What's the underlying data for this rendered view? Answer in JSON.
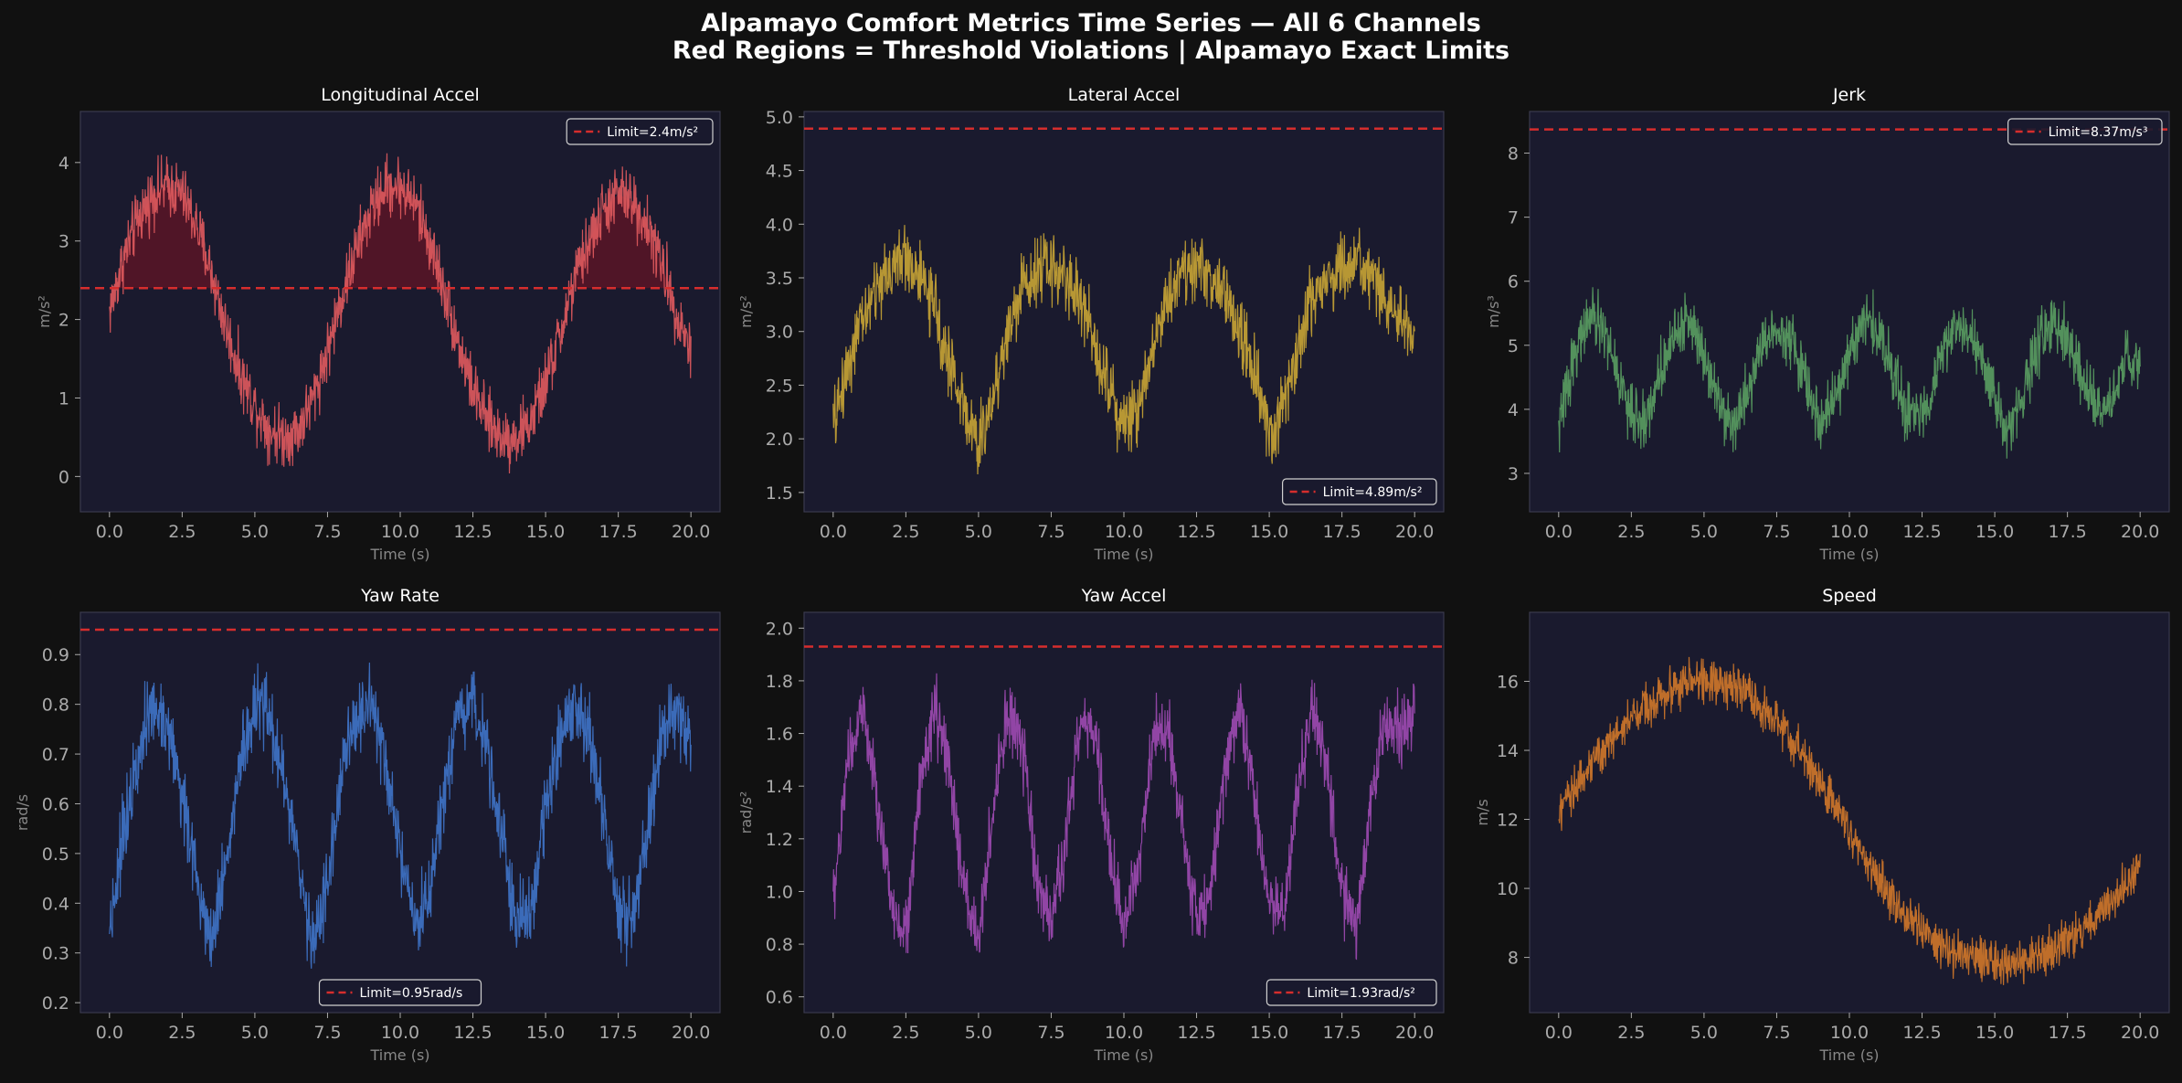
{
  "figure": {
    "title_line1": "Alpamayo Comfort Metrics Time Series — All 6 Channels",
    "title_line2": "Red Regions = Threshold Violations | Alpamayo Exact Limits"
  },
  "colors": {
    "figure_bg": "#111111",
    "axes_bg": "#1a1a2e",
    "limit_line": "#d62d2d",
    "violation_fill": "#5a1526"
  },
  "chart_data": [
    {
      "type": "line",
      "title": "Longitudinal Accel",
      "xlabel": "Time (s)",
      "ylabel": "m/s²",
      "color": "#e05a5e",
      "xlim": [
        -1.0,
        21.0
      ],
      "ylim": [
        -0.45,
        4.65
      ],
      "xticks": [
        0.0,
        2.5,
        5.0,
        7.5,
        10.0,
        12.5,
        15.0,
        17.5,
        20.0
      ],
      "xtick_labels": [
        "0.0",
        "2.5",
        "5.0",
        "7.5",
        "10.0",
        "12.5",
        "15.0",
        "17.5",
        "20.0"
      ],
      "yticks": [
        0,
        1,
        2,
        3,
        4
      ],
      "ytick_labels": [
        "0",
        "1",
        "2",
        "3",
        "4"
      ],
      "x": [
        0,
        0.5,
        1,
        1.5,
        2,
        2.5,
        3,
        3.5,
        4,
        4.5,
        5,
        5.5,
        6,
        6.5,
        7,
        7.5,
        8,
        8.5,
        9,
        9.5,
        10,
        10.5,
        11,
        11.5,
        12,
        12.5,
        13,
        13.5,
        14,
        14.5,
        15,
        15.5,
        16,
        16.5,
        17,
        17.5,
        18,
        18.5,
        19,
        19.5,
        20
      ],
      "y": [
        2.1,
        2.8,
        3.3,
        3.6,
        3.7,
        3.6,
        3.2,
        2.6,
        1.9,
        1.3,
        0.9,
        0.6,
        0.5,
        0.6,
        1.0,
        1.6,
        2.3,
        2.9,
        3.4,
        3.7,
        3.7,
        3.5,
        3.0,
        2.4,
        1.7,
        1.1,
        0.7,
        0.5,
        0.5,
        0.7,
        1.2,
        1.8,
        2.5,
        3.0,
        3.4,
        3.6,
        3.5,
        3.2,
        2.7,
        2.1,
        1.6
      ],
      "noise": 0.3,
      "limit": 2.4,
      "limit_label": "Limit=2.4m/s²",
      "legend": "top-right",
      "violation_fill": true
    },
    {
      "type": "line",
      "title": "Lateral Accel",
      "xlabel": "Time (s)",
      "ylabel": "m/s²",
      "color": "#c9a535",
      "xlim": [
        -1.0,
        21.0
      ],
      "ylim": [
        1.32,
        5.05
      ],
      "xticks": [
        0.0,
        2.5,
        5.0,
        7.5,
        10.0,
        12.5,
        15.0,
        17.5,
        20.0
      ],
      "xtick_labels": [
        "0.0",
        "2.5",
        "5.0",
        "7.5",
        "10.0",
        "12.5",
        "15.0",
        "17.5",
        "20.0"
      ],
      "yticks": [
        1.5,
        2.0,
        2.5,
        3.0,
        3.5,
        4.0,
        4.5,
        5.0
      ],
      "ytick_labels": [
        "1.5",
        "2.0",
        "2.5",
        "3.0",
        "3.5",
        "4.0",
        "4.5",
        "5.0"
      ],
      "x": [
        0,
        0.5,
        1,
        1.5,
        2,
        2.5,
        3,
        3.5,
        4,
        4.5,
        5,
        5.5,
        6,
        6.5,
        7,
        7.5,
        8,
        8.5,
        9,
        9.5,
        10,
        10.5,
        11,
        11.5,
        12,
        12.5,
        13,
        13.5,
        14,
        14.5,
        15,
        15.5,
        16,
        16.5,
        17,
        17.5,
        18,
        18.5,
        19,
        19.5,
        20
      ],
      "y": [
        2.1,
        2.7,
        3.1,
        3.4,
        3.6,
        3.7,
        3.5,
        3.2,
        2.7,
        2.3,
        1.9,
        2.4,
        3.0,
        3.4,
        3.6,
        3.6,
        3.5,
        3.3,
        2.9,
        2.5,
        2.1,
        2.3,
        2.9,
        3.3,
        3.6,
        3.6,
        3.5,
        3.3,
        3.0,
        2.6,
        2.0,
        2.3,
        2.9,
        3.3,
        3.5,
        3.6,
        3.6,
        3.5,
        3.3,
        3.1,
        2.9
      ],
      "noise": 0.25,
      "limit": 4.89,
      "limit_label": "Limit=4.89m/s²",
      "legend": "bottom-right",
      "violation_fill": false
    },
    {
      "type": "line",
      "title": "Jerk",
      "xlabel": "Time (s)",
      "ylabel": "m/s³",
      "color": "#5a9e62",
      "xlim": [
        -1.0,
        21.0
      ],
      "ylim": [
        2.4,
        8.65
      ],
      "xticks": [
        0.0,
        2.5,
        5.0,
        7.5,
        10.0,
        12.5,
        15.0,
        17.5,
        20.0
      ],
      "xtick_labels": [
        "0.0",
        "2.5",
        "5.0",
        "7.5",
        "10.0",
        "12.5",
        "15.0",
        "17.5",
        "20.0"
      ],
      "yticks": [
        3,
        4,
        5,
        6,
        7,
        8
      ],
      "ytick_labels": [
        "3",
        "4",
        "5",
        "6",
        "7",
        "8"
      ],
      "x": [
        0,
        0.5,
        1,
        1.5,
        2,
        2.5,
        3,
        3.5,
        4,
        4.5,
        5,
        5.5,
        6,
        6.5,
        7,
        7.5,
        8,
        8.5,
        9,
        9.5,
        10,
        10.5,
        11,
        11.5,
        12,
        12.5,
        13,
        13.5,
        14,
        14.5,
        15,
        15.5,
        16,
        16.5,
        17,
        17.5,
        18,
        18.5,
        19,
        19.5,
        20
      ],
      "y": [
        3.7,
        4.8,
        5.4,
        5.3,
        4.6,
        3.9,
        3.8,
        4.6,
        5.2,
        5.4,
        4.9,
        4.2,
        3.7,
        4.3,
        5.0,
        5.3,
        5.1,
        4.4,
        3.8,
        4.1,
        4.9,
        5.4,
        5.2,
        4.6,
        3.9,
        3.9,
        4.6,
        5.2,
        5.3,
        4.8,
        4.1,
        3.7,
        4.3,
        5.0,
        5.3,
        5.1,
        4.5,
        3.9,
        4.1,
        4.8,
        4.6
      ],
      "noise": 0.35,
      "limit": 8.37,
      "limit_label": "Limit=8.37m/s³",
      "legend": "top-right",
      "violation_fill": false
    },
    {
      "type": "line",
      "title": "Yaw Rate",
      "xlabel": "Time (s)",
      "ylabel": "rad/s",
      "color": "#3f74c9",
      "xlim": [
        -1.0,
        21.0
      ],
      "ylim": [
        0.18,
        0.985
      ],
      "xticks": [
        0.0,
        2.5,
        5.0,
        7.5,
        10.0,
        12.5,
        15.0,
        17.5,
        20.0
      ],
      "xtick_labels": [
        "0.0",
        "2.5",
        "5.0",
        "7.5",
        "10.0",
        "12.5",
        "15.0",
        "17.5",
        "20.0"
      ],
      "yticks": [
        0.2,
        0.3,
        0.4,
        0.5,
        0.6,
        0.7,
        0.8,
        0.9
      ],
      "ytick_labels": [
        "0.2",
        "0.3",
        "0.4",
        "0.5",
        "0.6",
        "0.7",
        "0.8",
        "0.9"
      ],
      "x": [
        0,
        0.5,
        1,
        1.5,
        2,
        2.5,
        3,
        3.5,
        4,
        4.5,
        5,
        5.5,
        6,
        6.5,
        7,
        7.5,
        8,
        8.5,
        9,
        9.5,
        10,
        10.5,
        11,
        11.5,
        12,
        12.5,
        13,
        13.5,
        14,
        14.5,
        15,
        15.5,
        16,
        16.5,
        17,
        17.5,
        18,
        18.5,
        19,
        19.5,
        20
      ],
      "y": [
        0.35,
        0.55,
        0.72,
        0.79,
        0.76,
        0.62,
        0.45,
        0.33,
        0.48,
        0.68,
        0.79,
        0.78,
        0.65,
        0.47,
        0.32,
        0.44,
        0.66,
        0.78,
        0.79,
        0.68,
        0.5,
        0.34,
        0.41,
        0.62,
        0.76,
        0.8,
        0.72,
        0.54,
        0.36,
        0.38,
        0.58,
        0.75,
        0.8,
        0.74,
        0.57,
        0.38,
        0.36,
        0.55,
        0.74,
        0.79,
        0.72
      ],
      "noise": 0.06,
      "limit": 0.95,
      "limit_label": "Limit=0.95rad/s",
      "legend": "bottom-center",
      "violation_fill": false
    },
    {
      "type": "line",
      "title": "Yaw Accel",
      "xlabel": "Time (s)",
      "ylabel": "rad/s²",
      "color": "#9f4ab3",
      "xlim": [
        -1.0,
        21.0
      ],
      "ylim": [
        0.54,
        2.06
      ],
      "xticks": [
        0.0,
        2.5,
        5.0,
        7.5,
        10.0,
        12.5,
        15.0,
        17.5,
        20.0
      ],
      "xtick_labels": [
        "0.0",
        "2.5",
        "5.0",
        "7.5",
        "10.0",
        "12.5",
        "15.0",
        "17.5",
        "20.0"
      ],
      "yticks": [
        0.6,
        0.8,
        1.0,
        1.2,
        1.4,
        1.6,
        1.8,
        2.0
      ],
      "ytick_labels": [
        "0.6",
        "0.8",
        "1.0",
        "1.2",
        "1.4",
        "1.6",
        "1.8",
        "2.0"
      ],
      "x": [
        0,
        0.5,
        1,
        1.5,
        2,
        2.5,
        3,
        3.5,
        4,
        4.5,
        5,
        5.5,
        6,
        6.5,
        7,
        7.5,
        8,
        8.5,
        9,
        9.5,
        10,
        10.5,
        11,
        11.5,
        12,
        12.5,
        13,
        13.5,
        14,
        14.5,
        15,
        15.5,
        16,
        16.5,
        17,
        17.5,
        18,
        18.5,
        19,
        19.5,
        20
      ],
      "y": [
        0.95,
        1.5,
        1.7,
        1.35,
        0.95,
        0.85,
        1.4,
        1.7,
        1.45,
        1.0,
        0.82,
        1.3,
        1.68,
        1.55,
        1.05,
        0.85,
        1.2,
        1.65,
        1.6,
        1.15,
        0.85,
        1.1,
        1.6,
        1.65,
        1.25,
        0.88,
        1.0,
        1.5,
        1.7,
        1.35,
        0.95,
        0.9,
        1.42,
        1.7,
        1.45,
        1.0,
        0.85,
        1.35,
        1.65,
        1.6,
        1.7
      ],
      "noise": 0.1,
      "limit": 1.93,
      "limit_label": "Limit=1.93rad/s²",
      "legend": "bottom-right",
      "violation_fill": false
    },
    {
      "type": "line",
      "title": "Speed",
      "xlabel": "Time (s)",
      "ylabel": "m/s",
      "color": "#d2782a",
      "xlim": [
        -1.0,
        21.0
      ],
      "ylim": [
        6.4,
        18.0
      ],
      "xticks": [
        0.0,
        2.5,
        5.0,
        7.5,
        10.0,
        12.5,
        15.0,
        17.5,
        20.0
      ],
      "xtick_labels": [
        "0.0",
        "2.5",
        "5.0",
        "7.5",
        "10.0",
        "12.5",
        "15.0",
        "17.5",
        "20.0"
      ],
      "yticks": [
        8,
        10,
        12,
        14,
        16
      ],
      "ytick_labels": [
        "8",
        "10",
        "12",
        "14",
        "16"
      ],
      "x": [
        0,
        0.5,
        1,
        1.5,
        2,
        2.5,
        3,
        3.5,
        4,
        4.5,
        5,
        5.5,
        6,
        6.5,
        7,
        7.5,
        8,
        8.5,
        9,
        9.5,
        10,
        10.5,
        11,
        11.5,
        12,
        12.5,
        13,
        13.5,
        14,
        14.5,
        15,
        15.5,
        16,
        16.5,
        17,
        17.5,
        18,
        18.5,
        19,
        19.5,
        20
      ],
      "y": [
        12.0,
        12.9,
        13.5,
        14.0,
        14.5,
        14.9,
        15.3,
        15.6,
        15.8,
        16.0,
        16.0,
        16.0,
        15.8,
        15.6,
        15.2,
        14.8,
        14.3,
        13.7,
        13.1,
        12.4,
        11.7,
        11.0,
        10.3,
        9.7,
        9.2,
        8.8,
        8.5,
        8.2,
        8.0,
        7.9,
        7.9,
        7.8,
        7.9,
        8.0,
        8.2,
        8.5,
        8.8,
        9.2,
        9.6,
        10.1,
        10.6
      ],
      "noise": 0.5,
      "limit": null,
      "limit_label": "",
      "legend": "none",
      "violation_fill": false
    }
  ]
}
